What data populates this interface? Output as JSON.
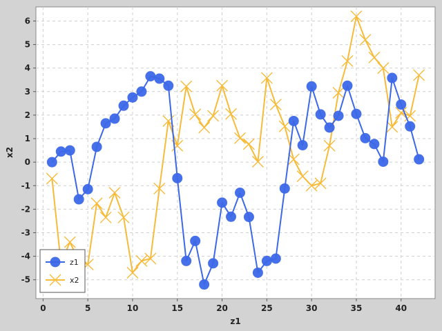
{
  "chart_data": {
    "type": "line",
    "title": "",
    "xlabel": "z1",
    "ylabel": "x2",
    "xlim": [
      -0.8,
      43.8
    ],
    "ylim": [
      -5.8,
      6.6
    ],
    "xticks": [
      0,
      5,
      10,
      15,
      20,
      25,
      30,
      35,
      40
    ],
    "yticks": [
      -5,
      -4,
      -3,
      -2,
      -1,
      0,
      1,
      2,
      3,
      4,
      5,
      6
    ],
    "grid": true,
    "legend": "bottom-left",
    "series": [
      {
        "name": "z1",
        "color": "#3c68e8",
        "marker": "circle",
        "x": [
          1,
          2,
          3,
          4,
          5,
          6,
          7,
          8,
          9,
          10,
          11,
          12,
          13,
          14,
          15,
          16,
          17,
          18,
          19,
          20,
          21,
          22,
          23,
          24,
          25,
          26,
          27,
          28,
          29,
          30,
          31,
          32,
          33,
          34,
          35,
          36,
          37,
          38,
          39,
          40,
          41,
          42
        ],
        "y": [
          0.0,
          0.45,
          0.5,
          -1.58,
          -1.15,
          0.65,
          1.65,
          1.85,
          2.4,
          2.75,
          3.0,
          3.65,
          3.55,
          3.25,
          -0.68,
          -4.2,
          -3.35,
          -5.2,
          -4.3,
          -1.72,
          -2.32,
          -1.3,
          -2.33,
          -4.7,
          -4.2,
          -4.1,
          -1.12,
          1.75,
          0.72,
          3.22,
          2.03,
          1.47,
          1.97,
          3.25,
          2.05,
          1.02,
          0.77,
          0.02,
          3.58,
          2.45,
          1.52,
          0.12
        ]
      },
      {
        "name": "x2",
        "color": "#f7bb3a",
        "marker": "x",
        "x": [
          1,
          2,
          3,
          4,
          5,
          6,
          7,
          8,
          9,
          10,
          11,
          12,
          13,
          14,
          15,
          16,
          17,
          18,
          19,
          20,
          21,
          22,
          23,
          24,
          25,
          26,
          27,
          28,
          29,
          30,
          31,
          32,
          33,
          34,
          35,
          36,
          37,
          38,
          39,
          40,
          41,
          42
        ],
        "y": [
          -0.7,
          -4.3,
          -3.4,
          -4.2,
          -4.35,
          -1.75,
          -2.35,
          -1.3,
          -2.35,
          -4.7,
          -4.2,
          -4.1,
          -1.12,
          1.75,
          0.7,
          3.22,
          2.03,
          1.47,
          1.97,
          3.25,
          2.05,
          1.02,
          0.77,
          0.02,
          3.58,
          2.45,
          1.52,
          0.12,
          -0.6,
          -1.0,
          -0.9,
          0.7,
          2.95,
          4.3,
          6.2,
          5.2,
          4.45,
          4.0,
          1.5,
          2.1,
          1.97,
          3.7
        ]
      }
    ]
  }
}
